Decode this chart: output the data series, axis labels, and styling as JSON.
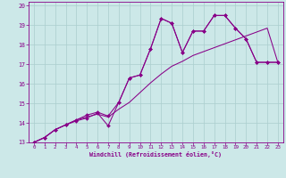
{
  "xlabel": "Windchill (Refroidissement éolien,°C)",
  "xlim": [
    -0.5,
    23.5
  ],
  "ylim": [
    13,
    20.2
  ],
  "xticks": [
    0,
    1,
    2,
    3,
    4,
    5,
    6,
    7,
    8,
    9,
    10,
    11,
    12,
    13,
    14,
    15,
    16,
    17,
    18,
    19,
    20,
    21,
    22,
    23
  ],
  "yticks": [
    13,
    14,
    15,
    16,
    17,
    18,
    19,
    20
  ],
  "bg_color": "#cce8e8",
  "line_color": "#880088",
  "grid_color": "#aacece",
  "line1_x": [
    0,
    1,
    2,
    3,
    4,
    5,
    6,
    7,
    8,
    9,
    10,
    11,
    12,
    13,
    14,
    15,
    16,
    17,
    18,
    19,
    20,
    21,
    22,
    23
  ],
  "line1_y": [
    13.0,
    13.25,
    13.65,
    13.9,
    14.1,
    14.25,
    14.5,
    13.85,
    15.05,
    16.3,
    16.45,
    17.8,
    19.35,
    19.1,
    17.6,
    18.7,
    18.7,
    19.5,
    19.5,
    18.85,
    18.3,
    17.1,
    17.1,
    17.1
  ],
  "line2_x": [
    0,
    1,
    2,
    3,
    4,
    5,
    6,
    7,
    8,
    9,
    10,
    11,
    12,
    13,
    14,
    15,
    16,
    17,
    18,
    19,
    20,
    21,
    22,
    23
  ],
  "line2_y": [
    13.0,
    13.25,
    13.65,
    13.9,
    14.15,
    14.4,
    14.55,
    14.35,
    15.05,
    16.3,
    16.45,
    17.8,
    19.35,
    19.1,
    17.6,
    18.7,
    18.7,
    19.5,
    19.5,
    18.85,
    18.3,
    17.1,
    17.1,
    17.1
  ],
  "line3_x": [
    0,
    1,
    2,
    3,
    4,
    5,
    6,
    7,
    8,
    9,
    10,
    11,
    12,
    13,
    14,
    15,
    16,
    17,
    18,
    19,
    20,
    21,
    22,
    23
  ],
  "line3_y": [
    13.0,
    13.25,
    13.65,
    13.9,
    14.15,
    14.3,
    14.45,
    14.3,
    14.7,
    15.05,
    15.55,
    16.05,
    16.5,
    16.9,
    17.15,
    17.45,
    17.65,
    17.85,
    18.05,
    18.25,
    18.45,
    18.65,
    18.85,
    17.1
  ]
}
